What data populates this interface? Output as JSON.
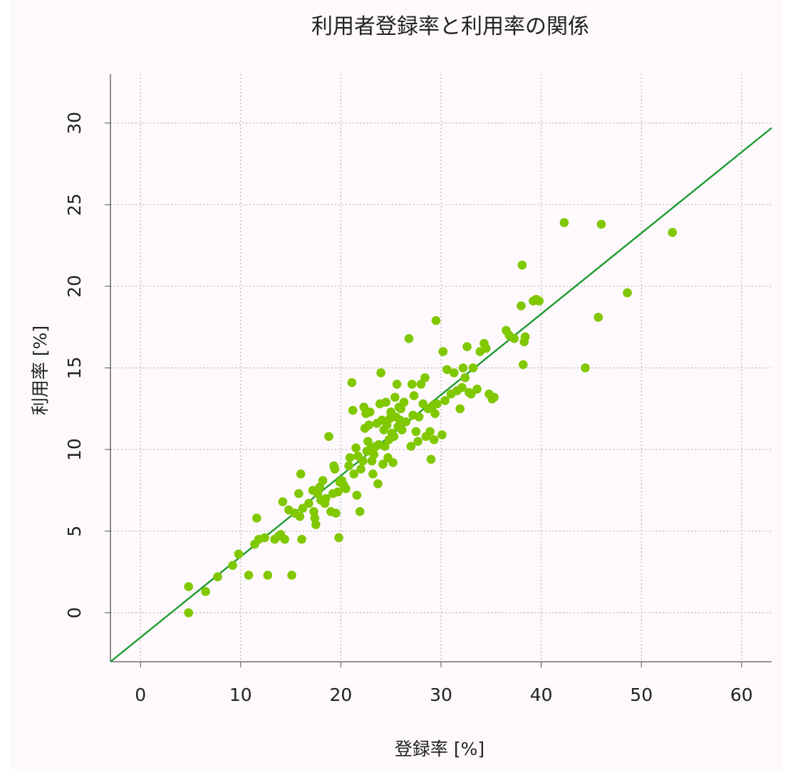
{
  "chart_data": {
    "type": "scatter",
    "title": "利用者登録率と利用率の関係",
    "xlabel": "登録率 [%]",
    "ylabel": "利用率 [%]",
    "xlim": [
      -3,
      63
    ],
    "ylim": [
      -3,
      33
    ],
    "x_ticks": [
      "0",
      "10",
      "20",
      "30",
      "40",
      "50",
      "60"
    ],
    "y_ticks": [
      "0",
      "5",
      "10",
      "15",
      "20",
      "25",
      "30"
    ],
    "grid": true,
    "point_color": "#80c800",
    "line_color": "#1e9b30",
    "regression_line": {
      "x": [
        -3,
        63
      ],
      "y": [
        -3,
        29.7
      ]
    },
    "points": [
      [
        4.8,
        1.6
      ],
      [
        4.8,
        0.0
      ],
      [
        6.5,
        1.3
      ],
      [
        7.7,
        2.2
      ],
      [
        9.2,
        2.9
      ],
      [
        9.8,
        3.6
      ],
      [
        10.8,
        2.3
      ],
      [
        11.4,
        4.2
      ],
      [
        11.6,
        5.8
      ],
      [
        11.8,
        4.5
      ],
      [
        12.4,
        4.6
      ],
      [
        12.7,
        2.3
      ],
      [
        13.4,
        4.5
      ],
      [
        13.8,
        4.7
      ],
      [
        14.0,
        4.8
      ],
      [
        14.4,
        4.5
      ],
      [
        14.2,
        6.8
      ],
      [
        14.8,
        6.3
      ],
      [
        15.1,
        2.3
      ],
      [
        15.4,
        6.1
      ],
      [
        15.8,
        7.3
      ],
      [
        15.9,
        5.9
      ],
      [
        16.0,
        8.5
      ],
      [
        16.1,
        4.5
      ],
      [
        16.2,
        6.4
      ],
      [
        16.8,
        6.7
      ],
      [
        17.2,
        7.5
      ],
      [
        17.3,
        6.2
      ],
      [
        17.4,
        5.8
      ],
      [
        17.5,
        5.4
      ],
      [
        17.7,
        7.3
      ],
      [
        17.9,
        7.7
      ],
      [
        18.0,
        6.9
      ],
      [
        18.2,
        8.1
      ],
      [
        18.4,
        6.7
      ],
      [
        18.5,
        7.0
      ],
      [
        18.8,
        10.8
      ],
      [
        19.0,
        6.2
      ],
      [
        19.2,
        7.3
      ],
      [
        19.3,
        9.0
      ],
      [
        19.4,
        8.8
      ],
      [
        19.5,
        6.1
      ],
      [
        19.7,
        7.4
      ],
      [
        19.8,
        4.6
      ],
      [
        19.9,
        8.0
      ],
      [
        20.1,
        8.1
      ],
      [
        20.3,
        7.8
      ],
      [
        20.5,
        7.6
      ],
      [
        20.8,
        9.0
      ],
      [
        20.9,
        9.5
      ],
      [
        21.1,
        14.1
      ],
      [
        21.2,
        12.4
      ],
      [
        21.3,
        8.5
      ],
      [
        21.5,
        10.1
      ],
      [
        21.6,
        7.2
      ],
      [
        21.7,
        9.6
      ],
      [
        21.9,
        6.2
      ],
      [
        22.0,
        8.8
      ],
      [
        22.2,
        9.3
      ],
      [
        22.3,
        12.6
      ],
      [
        22.4,
        11.3
      ],
      [
        22.5,
        12.2
      ],
      [
        22.6,
        9.9
      ],
      [
        22.7,
        10.5
      ],
      [
        22.8,
        11.5
      ],
      [
        22.9,
        12.3
      ],
      [
        23.0,
        10.1
      ],
      [
        23.1,
        9.3
      ],
      [
        23.2,
        8.5
      ],
      [
        23.3,
        9.7
      ],
      [
        23.5,
        10.2
      ],
      [
        23.6,
        11.6
      ],
      [
        23.7,
        7.9
      ],
      [
        23.8,
        10.3
      ],
      [
        23.9,
        12.8
      ],
      [
        24.0,
        14.7
      ],
      [
        24.1,
        11.8
      ],
      [
        24.2,
        9.1
      ],
      [
        24.3,
        11.2
      ],
      [
        24.4,
        10.2
      ],
      [
        24.5,
        12.9
      ],
      [
        24.6,
        11.5
      ],
      [
        24.7,
        9.5
      ],
      [
        24.8,
        10.6
      ],
      [
        24.9,
        11.9
      ],
      [
        25.0,
        12.3
      ],
      [
        25.1,
        11.0
      ],
      [
        25.2,
        9.2
      ],
      [
        25.3,
        10.8
      ],
      [
        25.4,
        13.2
      ],
      [
        25.5,
        12.0
      ],
      [
        25.6,
        14.0
      ],
      [
        25.7,
        11.4
      ],
      [
        25.8,
        12.6
      ],
      [
        25.9,
        11.8
      ],
      [
        26.0,
        12.5
      ],
      [
        26.1,
        11.2
      ],
      [
        26.3,
        12.9
      ],
      [
        26.5,
        11.7
      ],
      [
        26.8,
        16.8
      ],
      [
        27.0,
        10.2
      ],
      [
        27.1,
        14.0
      ],
      [
        27.2,
        12.1
      ],
      [
        27.3,
        13.3
      ],
      [
        27.5,
        11.1
      ],
      [
        27.7,
        10.5
      ],
      [
        27.8,
        12.0
      ],
      [
        28.0,
        14.0
      ],
      [
        28.2,
        12.8
      ],
      [
        28.4,
        14.4
      ],
      [
        28.5,
        10.8
      ],
      [
        28.7,
        12.5
      ],
      [
        28.9,
        11.1
      ],
      [
        29.0,
        9.4
      ],
      [
        29.2,
        12.7
      ],
      [
        29.3,
        10.6
      ],
      [
        29.4,
        12.2
      ],
      [
        29.5,
        17.9
      ],
      [
        29.6,
        12.8
      ],
      [
        30.1,
        10.9
      ],
      [
        30.2,
        16.0
      ],
      [
        30.4,
        13.0
      ],
      [
        30.6,
        14.9
      ],
      [
        31.0,
        13.4
      ],
      [
        31.3,
        14.7
      ],
      [
        31.6,
        13.6
      ],
      [
        31.9,
        12.5
      ],
      [
        32.1,
        13.8
      ],
      [
        32.2,
        15.0
      ],
      [
        32.4,
        14.4
      ],
      [
        32.6,
        16.3
      ],
      [
        32.8,
        13.5
      ],
      [
        33.0,
        13.4
      ],
      [
        33.2,
        15.0
      ],
      [
        33.6,
        13.7
      ],
      [
        33.9,
        16.0
      ],
      [
        34.3,
        16.5
      ],
      [
        34.5,
        16.2
      ],
      [
        34.8,
        13.4
      ],
      [
        35.1,
        13.1
      ],
      [
        35.3,
        13.2
      ],
      [
        36.5,
        17.3
      ],
      [
        36.8,
        17.0
      ],
      [
        37.3,
        16.8
      ],
      [
        38.0,
        18.8
      ],
      [
        38.1,
        21.3
      ],
      [
        38.2,
        15.2
      ],
      [
        38.3,
        16.6
      ],
      [
        38.4,
        16.9
      ],
      [
        39.2,
        19.1
      ],
      [
        39.5,
        19.2
      ],
      [
        39.8,
        19.1
      ],
      [
        42.3,
        23.9
      ],
      [
        44.4,
        15.0
      ],
      [
        45.7,
        18.1
      ],
      [
        46.0,
        23.8
      ],
      [
        48.6,
        19.6
      ],
      [
        53.1,
        23.3
      ]
    ]
  }
}
